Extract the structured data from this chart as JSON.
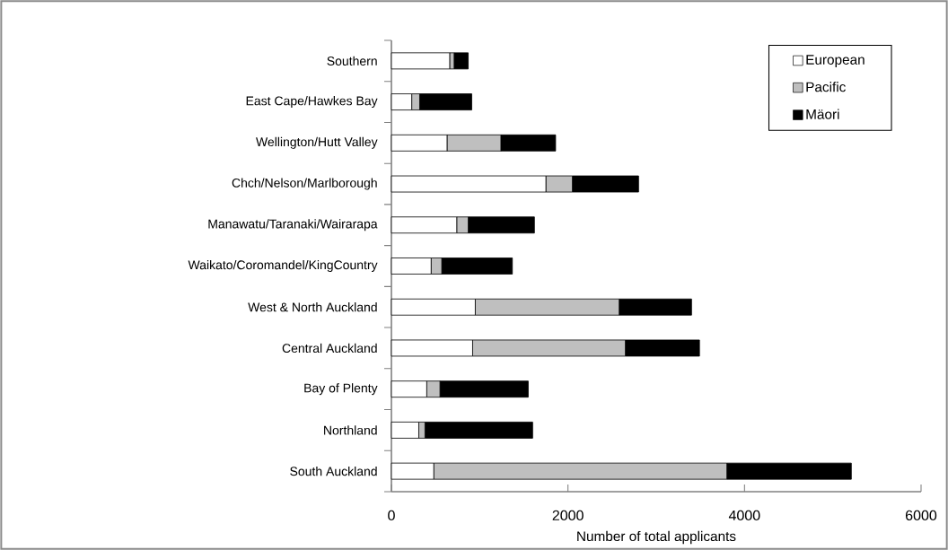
{
  "chart_data": {
    "type": "bar",
    "orientation": "horizontal",
    "stacked": true,
    "xlabel": "Number of total applicants",
    "categories": [
      "Southern",
      "East Cape/Hawkes Bay",
      "Wellington/Hutt Valley",
      "Chch/Nelson/Marlborough",
      "Manawatu/Taranaki/Wairarapa",
      "Waikato/Coromandel/KingCountry",
      "West & North Auckland",
      "Central Auckland",
      "Bay of Plenty",
      "Northland",
      "South Auckland"
    ],
    "series": [
      {
        "name": "European",
        "color": "#ffffff",
        "values": [
          660,
          230,
          630,
          1750,
          740,
          450,
          950,
          920,
          400,
          310,
          480
        ]
      },
      {
        "name": "Pacific",
        "color": "#bfbfbf",
        "values": [
          50,
          90,
          610,
          300,
          130,
          120,
          1630,
          1730,
          150,
          70,
          3320
        ]
      },
      {
        "name": "Mäori",
        "color": "#000000",
        "values": [
          160,
          590,
          620,
          750,
          750,
          800,
          820,
          840,
          1000,
          1220,
          1410
        ]
      }
    ],
    "xlim": [
      0,
      6000
    ],
    "xticks": [
      0,
      2000,
      4000,
      6000
    ],
    "legend": "top right",
    "grid": false
  }
}
